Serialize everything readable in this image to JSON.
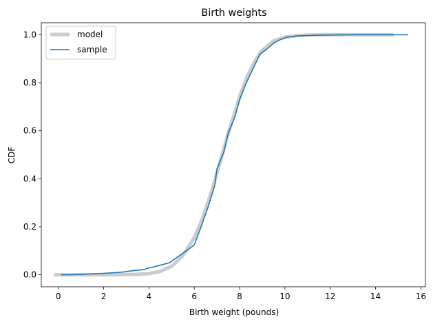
{
  "chart_data": {
    "type": "line",
    "title": "Birth weights",
    "xlabel": "Birth weight (pounds)",
    "ylabel": "CDF",
    "xlim": [
      -0.75,
      16.2
    ],
    "ylim": [
      -0.05,
      1.05
    ],
    "xticks": [
      0,
      2,
      4,
      6,
      8,
      10,
      12,
      14,
      16
    ],
    "xtick_labels": [
      "0",
      "2",
      "4",
      "6",
      "8",
      "10",
      "12",
      "14",
      "16"
    ],
    "yticks": [
      0.0,
      0.2,
      0.4,
      0.6,
      0.8,
      1.0
    ],
    "ytick_labels": [
      "0.0",
      "0.2",
      "0.4",
      "0.6",
      "0.8",
      "1.0"
    ],
    "grid": false,
    "legend": "top-left",
    "series": [
      {
        "name": "model",
        "color": "#cccccc",
        "x": [
          -0.2,
          1.0,
          2.0,
          3.0,
          3.5,
          4.0,
          4.5,
          5.0,
          5.5,
          6.0,
          6.3,
          6.6,
          6.9,
          7.2,
          7.5,
          7.8,
          8.1,
          8.4,
          8.7,
          9.0,
          9.5,
          10.0,
          10.5,
          11.0,
          12.0,
          13.0,
          14.8
        ],
        "y": [
          0.0,
          0.0,
          0.0,
          0.001,
          0.002,
          0.005,
          0.014,
          0.035,
          0.08,
          0.155,
          0.22,
          0.3,
          0.39,
          0.49,
          0.59,
          0.68,
          0.77,
          0.84,
          0.895,
          0.935,
          0.975,
          0.99,
          0.996,
          0.999,
          1.0,
          1.0,
          1.0
        ]
      },
      {
        "name": "sample",
        "color": "#1f77b4",
        "x": [
          0.12,
          0.5,
          1.0,
          1.5,
          2.0,
          2.5,
          2.9,
          3.1,
          3.4,
          3.8,
          3.9,
          4.2,
          4.5,
          4.9,
          5.2,
          5.5,
          5.8,
          6.0,
          6.3,
          6.6,
          6.9,
          7.0,
          7.3,
          7.5,
          7.8,
          8.0,
          8.3,
          8.6,
          8.9,
          9.2,
          9.5,
          9.8,
          10.1,
          10.5,
          11.0,
          11.5,
          12.0,
          13.0,
          14.0,
          15.44
        ],
        "y": [
          0.0,
          0.0,
          0.002,
          0.004,
          0.006,
          0.009,
          0.012,
          0.015,
          0.018,
          0.022,
          0.026,
          0.033,
          0.04,
          0.05,
          0.07,
          0.09,
          0.11,
          0.125,
          0.2,
          0.28,
          0.37,
          0.44,
          0.51,
          0.59,
          0.66,
          0.73,
          0.8,
          0.86,
          0.92,
          0.94,
          0.965,
          0.98,
          0.99,
          0.995,
          0.997,
          0.998,
          0.999,
          1.0,
          1.0,
          1.0
        ]
      }
    ]
  }
}
